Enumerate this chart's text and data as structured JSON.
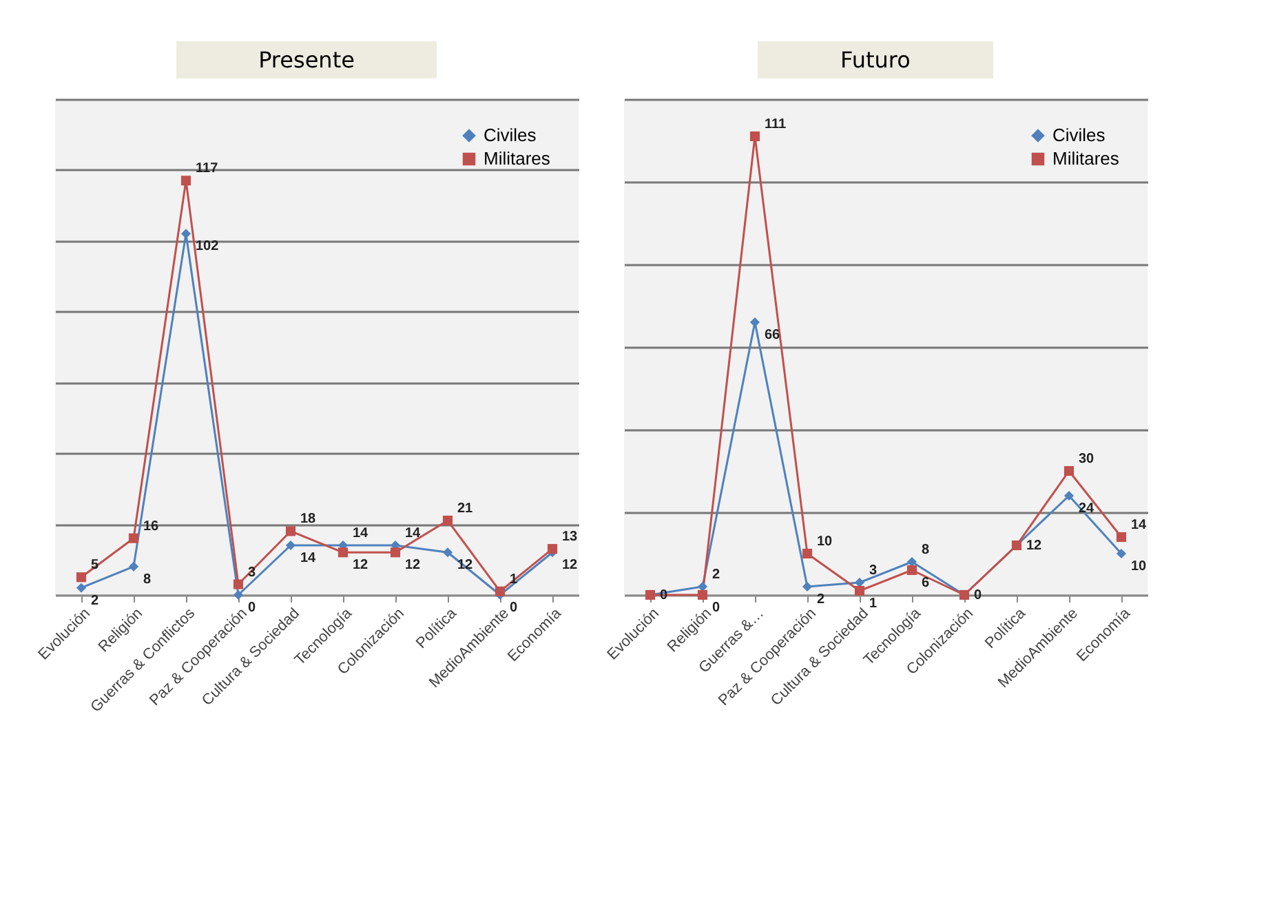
{
  "chart_data": [
    {
      "type": "line",
      "title": "Presente",
      "categories": [
        "Evolución",
        "Religión",
        "Guerras & Conflictos",
        "Paz & Cooperación",
        "Cultura & Sociedad",
        "Tecnología",
        "Colonización",
        "Política",
        "MedioAmbiente",
        "Economía"
      ],
      "series": [
        {
          "name": "Civiles",
          "color": "#4f81bd",
          "marker": "diamond",
          "values": [
            2,
            8,
            102,
            0,
            14,
            14,
            14,
            12,
            0,
            12
          ]
        },
        {
          "name": "Militares",
          "color": "#c0504d",
          "marker": "square",
          "values": [
            5,
            16,
            117,
            3,
            18,
            12,
            12,
            21,
            1,
            13
          ]
        }
      ],
      "ylim": [
        0,
        140
      ],
      "yticks": [
        {
          "value": 0,
          "label": null
        },
        {
          "value": 20,
          "label": null
        },
        {
          "value": 40,
          "label": null
        },
        {
          "value": 60,
          "label": null
        },
        {
          "value": 80,
          "label": null
        },
        {
          "value": 100,
          "label": null
        },
        {
          "value": 120,
          "label": null
        },
        {
          "value": 140,
          "label": null
        }
      ],
      "tick_labels": "x",
      "grid": "y",
      "legend": "top right",
      "data_labels": true
    },
    {
      "type": "line",
      "title": "Futuro",
      "categories": [
        "Evolución",
        "Religión",
        "Guerras &…",
        "Paz & Cooperación",
        "Cultura & Sociedad",
        "Tecnología",
        "Colonización",
        "Política",
        "MedioAmbiente",
        "Economía"
      ],
      "series": [
        {
          "name": "Civiles",
          "color": "#4f81bd",
          "marker": "diamond",
          "values": [
            0,
            2,
            66,
            2,
            3,
            8,
            0,
            12,
            24,
            10
          ],
          "value_labels": [
            null,
            "2",
            "66",
            "2",
            "3",
            "8",
            null,
            null,
            "24",
            "10"
          ]
        },
        {
          "name": "Militares",
          "color": "#c0504d",
          "marker": "square",
          "values": [
            0,
            0,
            111,
            10,
            1,
            6,
            0,
            12,
            30,
            14
          ],
          "value_labels": [
            "0",
            "0",
            "111",
            "10",
            "1",
            "6",
            "0",
            "12",
            "30",
            "14"
          ]
        }
      ],
      "ylim": [
        0,
        120
      ],
      "yticks": [
        {
          "value": 0,
          "label": null
        },
        {
          "value": 20,
          "label": null
        },
        {
          "value": 40,
          "label": null
        },
        {
          "value": 60,
          "label": null
        },
        {
          "value": 80,
          "label": null
        },
        {
          "value": 100,
          "label": null
        },
        {
          "value": 120,
          "label": null
        }
      ],
      "tick_labels": "x",
      "grid": "y",
      "legend": "top right"
    }
  ]
}
